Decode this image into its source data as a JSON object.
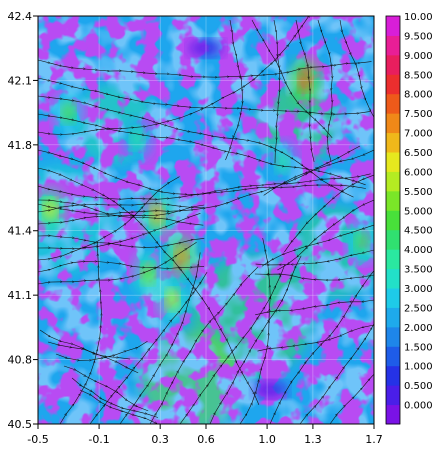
{
  "chart_data": {
    "type": "heatmap",
    "title": "",
    "xlabel": "",
    "ylabel": "",
    "xlim": [
      -0.5,
      1.7
    ],
    "ylim": [
      40.5,
      42.4
    ],
    "x_ticks": [
      -0.5,
      -0.1,
      0.3,
      0.6,
      1.0,
      1.3,
      1.7
    ],
    "x_tick_labels": [
      "-0.5",
      "-0.1",
      "0.3",
      "0.6",
      "1.0",
      "1.3",
      "1.7"
    ],
    "y_ticks": [
      40.5,
      40.8,
      41.1,
      41.4,
      41.8,
      42.1,
      42.4
    ],
    "y_tick_labels": [
      "40.5",
      "40.8",
      "41.1",
      "41.4",
      "41.8",
      "42.1",
      "42.4"
    ],
    "grid": true,
    "overlay": "streamlines",
    "colorbar": {
      "position": "right",
      "labels": [
        "0.000",
        "0.500",
        "1.000",
        "1.500",
        "2.000",
        "2.500",
        "3.000",
        "3.500",
        "4.000",
        "4.500",
        "5.000",
        "5.500",
        "6.000",
        "6.500",
        "7.000",
        "7.500",
        "8.000",
        "8.500",
        "9.000",
        "9.500",
        "10.00"
      ],
      "colors": [
        "#7a12e6",
        "#4a1ee8",
        "#2532e6",
        "#1e5ce8",
        "#1e86ea",
        "#1eaaec",
        "#1ecbe8",
        "#22e0c8",
        "#2ae8a0",
        "#30e070",
        "#48e03a",
        "#7ae628",
        "#b4ec22",
        "#e6e81e",
        "#f0b81a",
        "#f08818",
        "#ee5a1a",
        "#ec2e2e",
        "#e81e5e",
        "#e81e96",
        "#d81ed8"
      ]
    },
    "hotspots": [
      {
        "x": -0.42,
        "y": 41.5,
        "value": 6.5
      },
      {
        "x": 0.28,
        "y": 41.47,
        "value": 7.0
      },
      {
        "x": 0.44,
        "y": 41.28,
        "value": 7.5
      },
      {
        "x": 0.38,
        "y": 41.08,
        "value": 6.0
      },
      {
        "x": 0.22,
        "y": 41.2,
        "value": 5.5
      },
      {
        "x": -0.3,
        "y": 41.95,
        "value": 5.0
      },
      {
        "x": 1.25,
        "y": 42.1,
        "value": 8.0
      },
      {
        "x": 1.62,
        "y": 41.35,
        "value": 5.0
      },
      {
        "x": 1.1,
        "y": 41.72,
        "value": 4.0
      },
      {
        "x": 0.15,
        "y": 41.83,
        "value": 4.0
      },
      {
        "x": 1.02,
        "y": 40.66,
        "value": 0.5
      },
      {
        "x": 0.6,
        "y": 42.25,
        "value": 0.5
      }
    ]
  }
}
